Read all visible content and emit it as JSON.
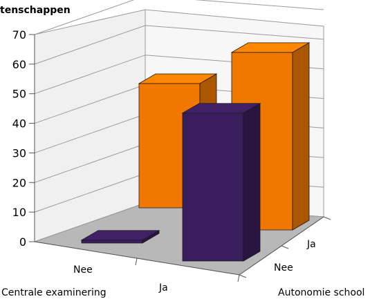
{
  "chart_data": {
    "type": "bar",
    "subtype": "3d-bar",
    "ylabel": "tenschappen",
    "ylim": [
      0,
      70
    ],
    "y_ticks": [
      0,
      10,
      20,
      30,
      40,
      50,
      60,
      70
    ],
    "x_axis": {
      "title": "Centrale examinering",
      "categories": [
        "Nee",
        "Ja"
      ]
    },
    "z_axis": {
      "title": "Autonomie school",
      "categories": [
        "Nee",
        "Ja"
      ]
    },
    "series": [
      {
        "depth_category": "Nee",
        "color": "#3a1d5c",
        "values": [
          1,
          50
        ]
      },
      {
        "depth_category": "Ja",
        "color": "#f07800",
        "values": [
          42,
          60
        ]
      }
    ],
    "grid": true
  }
}
